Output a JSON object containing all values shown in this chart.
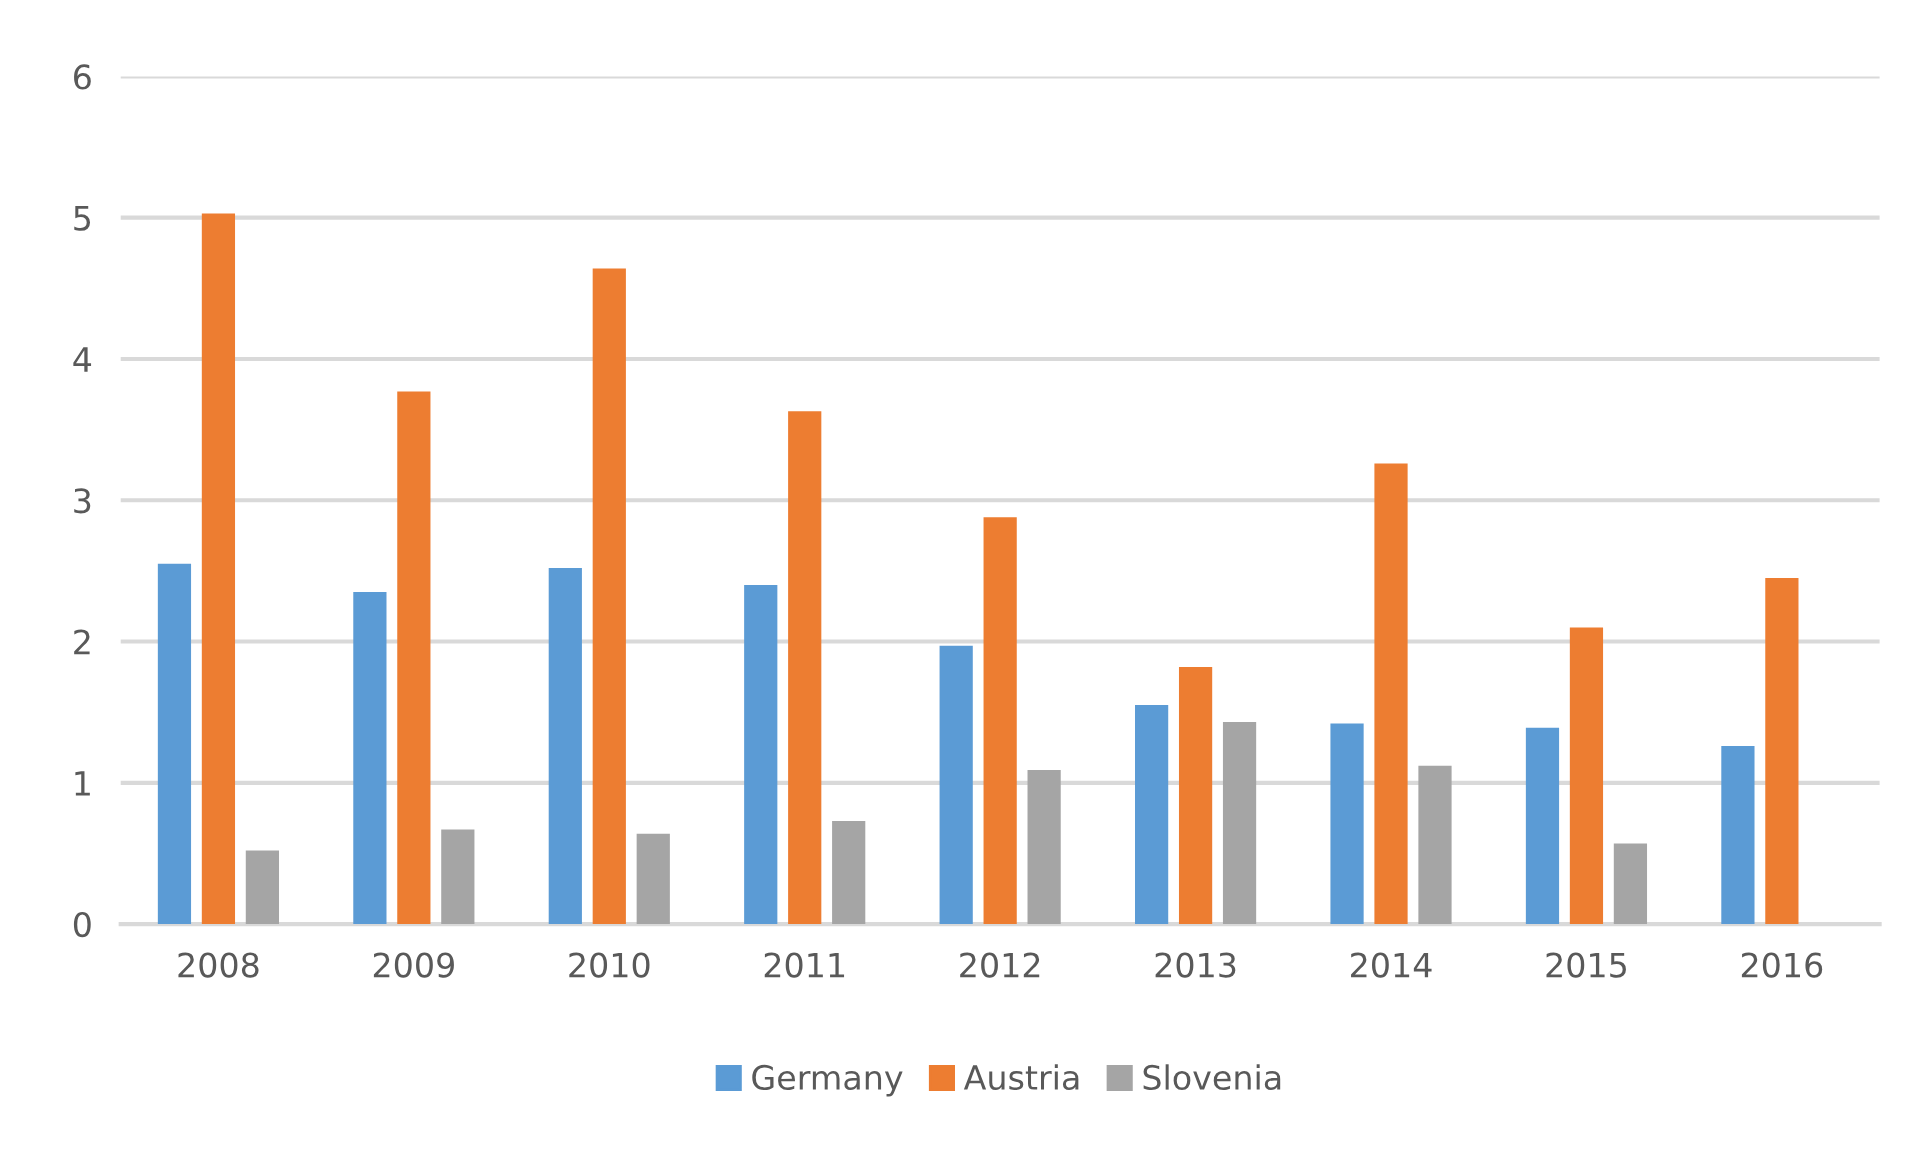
{
  "chart_data": {
    "type": "bar",
    "categories": [
      "2008",
      "2009",
      "2010",
      "2011",
      "2012",
      "2013",
      "2014",
      "2015",
      "2016"
    ],
    "series": [
      {
        "name": "Germany",
        "color": "#5b9bd5",
        "values": [
          2.55,
          2.35,
          2.52,
          2.4,
          1.97,
          1.55,
          1.42,
          1.39,
          1.26
        ]
      },
      {
        "name": "Austria",
        "color": "#ed7d31",
        "values": [
          5.03,
          3.77,
          4.64,
          3.63,
          2.88,
          1.82,
          3.26,
          2.1,
          2.45
        ]
      },
      {
        "name": "Slovenia",
        "color": "#a5a5a5",
        "values": [
          0.52,
          0.67,
          0.64,
          0.73,
          1.09,
          1.43,
          1.12,
          0.57,
          null
        ]
      }
    ],
    "ylim": [
      0,
      6
    ],
    "yticks": [
      0,
      1,
      2,
      3,
      4,
      5,
      6
    ],
    "grid": "y",
    "legend": "bottom"
  }
}
